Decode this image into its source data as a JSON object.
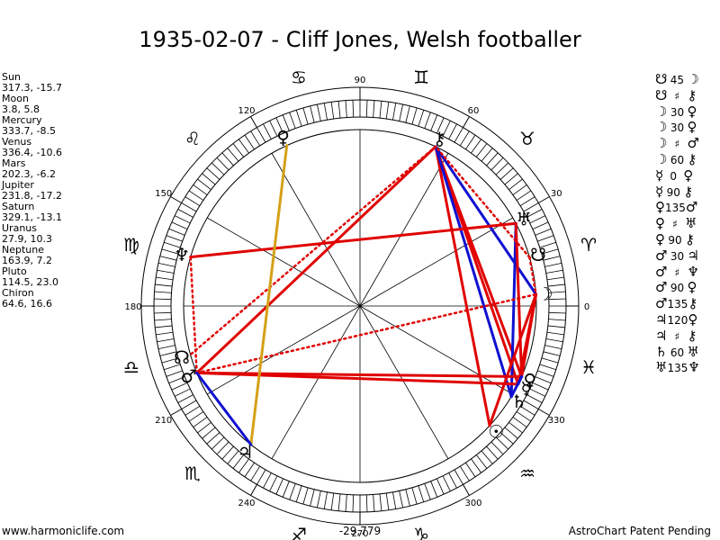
{
  "title": "1935-02-07 - Cliff Jones, Welsh footballer",
  "planets": [
    {
      "name": "Sun",
      "coords": "317.3, -15.7"
    },
    {
      "name": "Moon",
      "coords": "3.8, 5.8"
    },
    {
      "name": "Mercury",
      "coords": "333.7, -8.5"
    },
    {
      "name": "Venus",
      "coords": "336.4, -10.6"
    },
    {
      "name": "Mars",
      "coords": "202.3, -6.2"
    },
    {
      "name": "Jupiter",
      "coords": "231.8, -17.2"
    },
    {
      "name": "Saturn",
      "coords": "329.1, -13.1"
    },
    {
      "name": "Uranus",
      "coords": "27.9, 10.3"
    },
    {
      "name": "Neptune",
      "coords": "163.9, 7.2"
    },
    {
      "name": "Pluto",
      "coords": "114.5, 23.0"
    },
    {
      "name": "Chiron",
      "coords": "64.6, 16.6"
    }
  ],
  "aspects": [
    {
      "a": "☋",
      "value": "45",
      "b": "☽"
    },
    {
      "a": "☋",
      "value": "♯",
      "b": "⚷"
    },
    {
      "a": "☽",
      "value": "30",
      "b": "♀"
    },
    {
      "a": "☽",
      "value": "30",
      "b": "♀"
    },
    {
      "a": "☽",
      "value": "♯",
      "b": "♂"
    },
    {
      "a": "☽",
      "value": "60",
      "b": "⚷"
    },
    {
      "a": "☿",
      "value": "0",
      "b": "♀"
    },
    {
      "a": "☿",
      "value": "90",
      "b": "⚷"
    },
    {
      "a": "♀",
      "value": "135",
      "b": "♂"
    },
    {
      "a": "♀",
      "value": "♯",
      "b": "♅"
    },
    {
      "a": "♀",
      "value": "90",
      "b": "⚷"
    },
    {
      "a": "♂",
      "value": "30",
      "b": "♃"
    },
    {
      "a": "♂",
      "value": "♯",
      "b": "♆"
    },
    {
      "a": "♂",
      "value": "90",
      "b": "♀"
    },
    {
      "a": "♂",
      "value": "135",
      "b": "⚷"
    },
    {
      "a": "♃",
      "value": "120",
      "b": "♀"
    },
    {
      "a": "♃",
      "value": "♯",
      "b": "⚷"
    },
    {
      "a": "♄",
      "value": "60",
      "b": "♅"
    },
    {
      "a": "♅",
      "value": "135",
      "b": "♆"
    }
  ],
  "degree_labels": [
    "0",
    "30",
    "60",
    "90",
    "120",
    "150",
    "180",
    "210",
    "240",
    "270",
    "300",
    "330"
  ],
  "zodiac_signs": [
    {
      "sign": "♈",
      "deg": 15
    },
    {
      "sign": "♉",
      "deg": 45
    },
    {
      "sign": "♊",
      "deg": 75
    },
    {
      "sign": "♋",
      "deg": 105
    },
    {
      "sign": "♌",
      "deg": 135
    },
    {
      "sign": "♍",
      "deg": 165
    },
    {
      "sign": "♎",
      "deg": 195
    },
    {
      "sign": "♏",
      "deg": 225
    },
    {
      "sign": "♐",
      "deg": 255
    },
    {
      "sign": "♑",
      "deg": 285
    },
    {
      "sign": "♒",
      "deg": 315
    },
    {
      "sign": "♓",
      "deg": 345
    }
  ],
  "planet_positions": [
    {
      "glyph": "☉",
      "deg": 317.3
    },
    {
      "glyph": "☽",
      "deg": 3.8
    },
    {
      "glyph": "☿",
      "deg": 333.7
    },
    {
      "glyph": "♀",
      "deg": 336.4
    },
    {
      "glyph": "♂",
      "deg": 202.3
    },
    {
      "glyph": "♃",
      "deg": 231.8
    },
    {
      "glyph": "♄",
      "deg": 329.1
    },
    {
      "glyph": "♅",
      "deg": 27.9
    },
    {
      "glyph": "♆",
      "deg": 163.9
    },
    {
      "glyph": "♀",
      "deg": 114.5
    },
    {
      "glyph": "⚷",
      "deg": 64.6
    },
    {
      "glyph": "☊",
      "deg": 196
    },
    {
      "glyph": "☋",
      "deg": 16
    }
  ],
  "aspect_lines": [
    {
      "from": 64.6,
      "to": 202.3,
      "color": "#e00000",
      "style": "solid"
    },
    {
      "from": 64.6,
      "to": 336.4,
      "color": "#e00000",
      "style": "solid"
    },
    {
      "from": 64.6,
      "to": 333.7,
      "color": "#e00000",
      "style": "solid"
    },
    {
      "from": 64.6,
      "to": 317.3,
      "color": "#e00000",
      "style": "solid"
    },
    {
      "from": 64.6,
      "to": 3.8,
      "color": "#1010d0",
      "style": "solid"
    },
    {
      "from": 64.6,
      "to": 329.1,
      "color": "#1010d0",
      "style": "solid"
    },
    {
      "from": 64.6,
      "to": 196,
      "color": "#e00000",
      "style": "dotted"
    },
    {
      "from": 27.9,
      "to": 163.9,
      "color": "#e00000",
      "style": "solid"
    },
    {
      "from": 27.9,
      "to": 329.1,
      "color": "#1010d0",
      "style": "solid"
    },
    {
      "from": 27.9,
      "to": 336.4,
      "color": "#e00000",
      "style": "solid"
    },
    {
      "from": 202.3,
      "to": 336.4,
      "color": "#e00000",
      "style": "solid"
    },
    {
      "from": 202.3,
      "to": 333.7,
      "color": "#e00000",
      "style": "solid"
    },
    {
      "from": 202.3,
      "to": 3.8,
      "color": "#e00000",
      "style": "dotted"
    },
    {
      "from": 202.3,
      "to": 163.9,
      "color": "#e00000",
      "style": "dotted"
    },
    {
      "from": 231.8,
      "to": 114.5,
      "color": "#d4a017",
      "style": "solid"
    },
    {
      "from": 231.8,
      "to": 202.3,
      "color": "#1010d0",
      "style": "solid"
    },
    {
      "from": 3.8,
      "to": 336.4,
      "color": "#e00000",
      "style": "solid"
    },
    {
      "from": 3.8,
      "to": 333.7,
      "color": "#e00000",
      "style": "solid"
    },
    {
      "from": 3.8,
      "to": 317.3,
      "color": "#e00000",
      "style": "solid"
    },
    {
      "from": 16,
      "to": 3.8,
      "color": "#e00000",
      "style": "dotted"
    },
    {
      "from": 333.7,
      "to": 336.4,
      "color": "#1010d0",
      "style": "solid"
    },
    {
      "from": 329.1,
      "to": 336.4,
      "color": "#1010d0",
      "style": "solid"
    },
    {
      "from": 16,
      "to": 64.6,
      "color": "#e00000",
      "style": "dotted"
    }
  ],
  "footer": {
    "left": "www.harmoniclife.com",
    "center": "-29,779",
    "right": "AstroChart Patent Pending"
  }
}
